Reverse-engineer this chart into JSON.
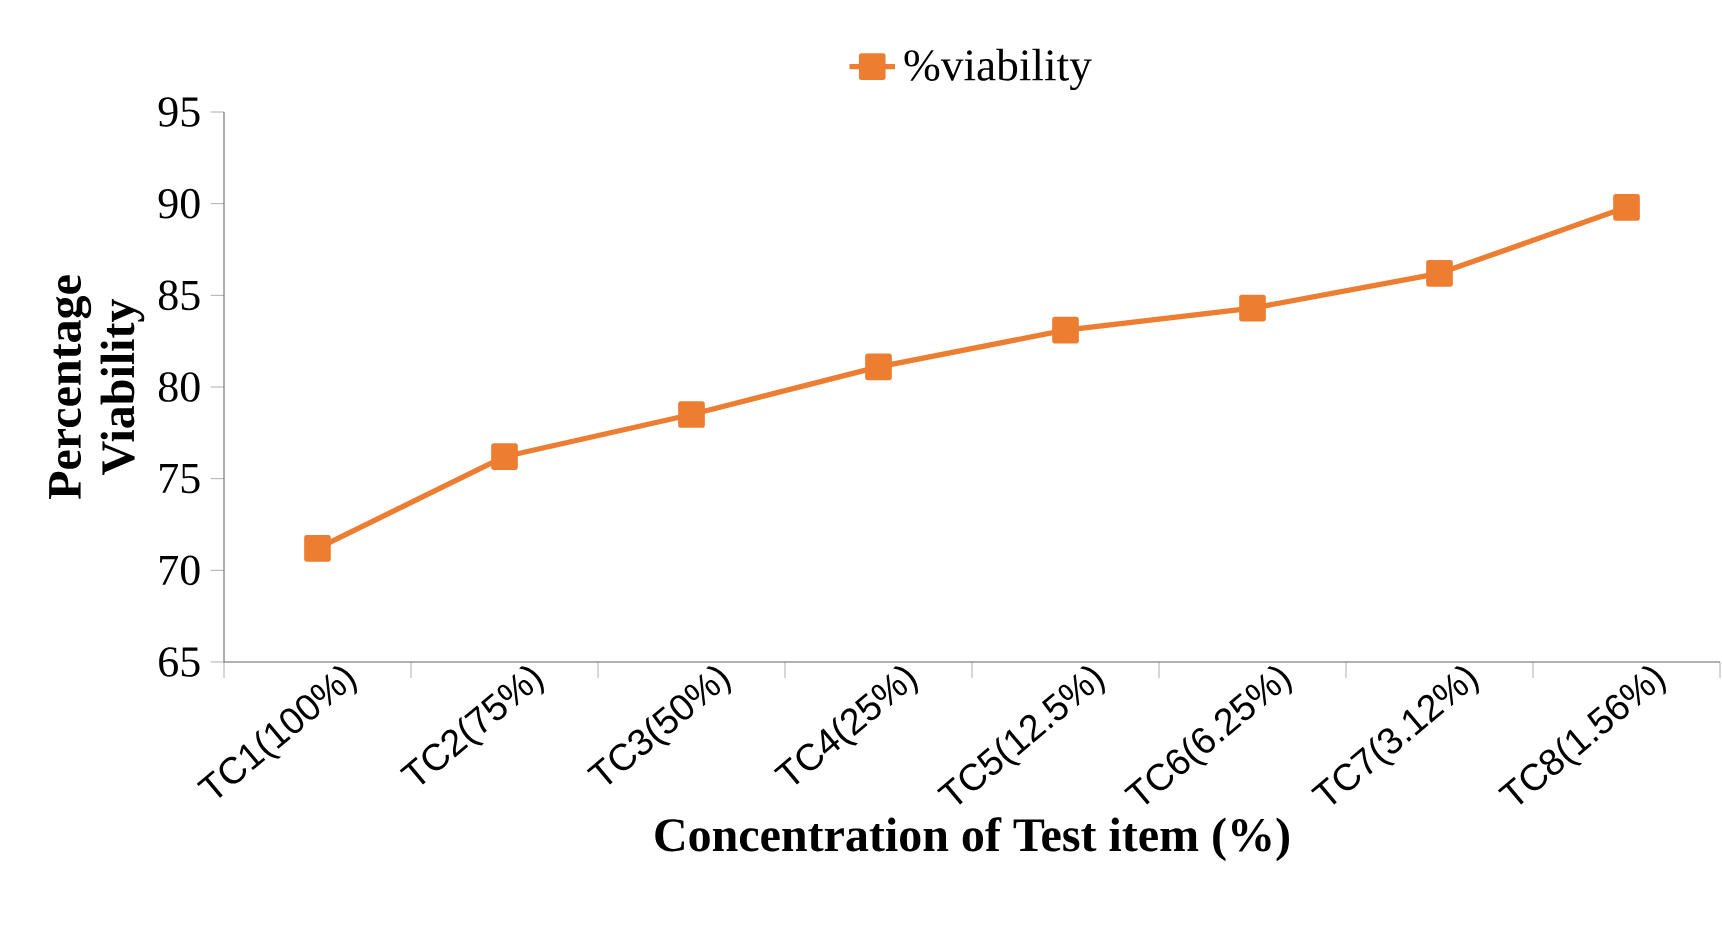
{
  "chart_data": {
    "type": "line",
    "xlabel": "Concentration of Test item (%)",
    "ylabel": "Percentage Viability",
    "categories": [
      "TC1(100%)",
      "TC2(75%)",
      "TC3(50%)",
      "TC4(25%)",
      "TC5(12.5%)",
      "TC6(6.25%)",
      "TC7(3.12%)",
      "TC8(1.56%)"
    ],
    "series": [
      {
        "name": "%viability",
        "color": "#ed7d31",
        "values": [
          71.2,
          76.2,
          78.5,
          81.1,
          83.1,
          84.3,
          86.2,
          89.8
        ]
      }
    ],
    "ylim": [
      65,
      95
    ],
    "yticks": [
      65,
      70,
      75,
      80,
      85,
      90,
      95
    ],
    "marker": "square",
    "legend": "top",
    "grid": false
  }
}
